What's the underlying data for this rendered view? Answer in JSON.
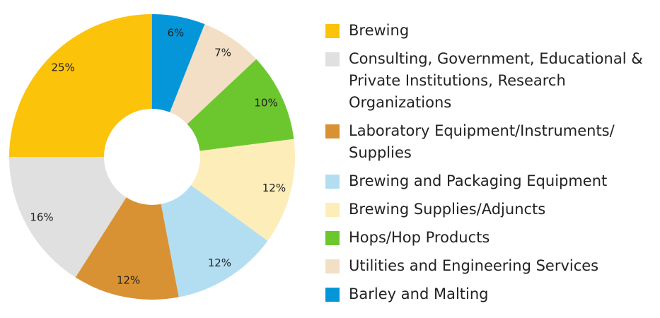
{
  "chart_data": {
    "type": "pie",
    "categories": [
      "Brewing",
      "Consulting, Government, Educational & Private Institutions, Research Organizations",
      "Laboratory Equipment/Instruments/ Supplies",
      "Brewing and Packaging Equipment",
      "Brewing Supplies/Adjuncts",
      "Hops/Hop Products",
      "Utilities and Engineering Services",
      "Barley and Malting"
    ],
    "values": [
      25,
      16,
      12,
      12,
      12,
      10,
      7,
      6
    ],
    "value_labels": [
      "25%",
      "16%",
      "12%",
      "12%",
      "12%",
      "10%",
      "7%",
      "6%"
    ],
    "colors": [
      "#fcc30b",
      "#e0e0e0",
      "#d99233",
      "#b3def2",
      "#fdedb8",
      "#6cc72e",
      "#f3dfc6",
      "#0496d9"
    ]
  }
}
